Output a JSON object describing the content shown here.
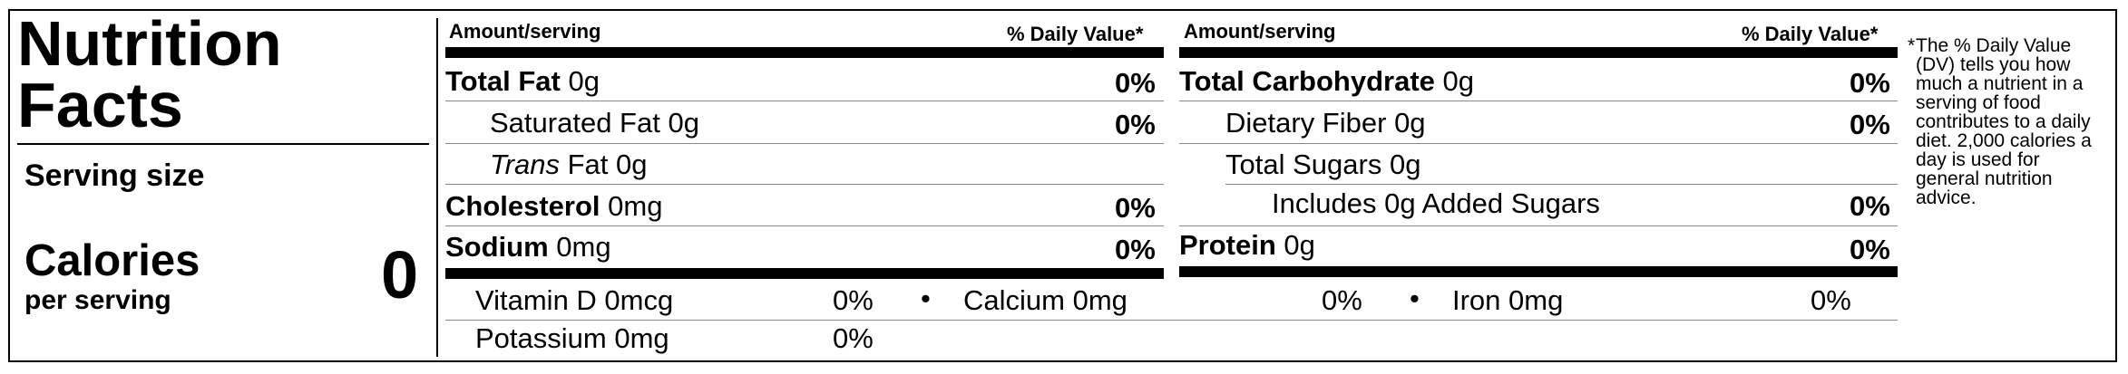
{
  "title": {
    "line1": "Nutrition",
    "line2": "Facts"
  },
  "serving_size_label": "Serving size",
  "calories": {
    "label": "Calories",
    "per": "per serving",
    "value": "0"
  },
  "headers": {
    "amount": "Amount/serving",
    "dv": "% Daily Value*"
  },
  "left_rows": {
    "total_fat": {
      "name": "Total Fat",
      "amount": "0g",
      "dv": "0%"
    },
    "sat_fat": {
      "name": "Saturated Fat",
      "amount": "0g",
      "dv": "0%"
    },
    "trans_fat": {
      "name_italic": "Trans",
      "name": "Fat",
      "amount": "0g"
    },
    "cholesterol": {
      "name": "Cholesterol",
      "amount": "0mg",
      "dv": "0%"
    },
    "sodium": {
      "name": "Sodium",
      "amount": "0mg",
      "dv": "0%"
    }
  },
  "right_rows": {
    "total_carb": {
      "name": "Total Carbohydrate",
      "amount": "0g",
      "dv": "0%"
    },
    "fiber": {
      "name": "Dietary Fiber",
      "amount": "0g",
      "dv": "0%"
    },
    "sugars": {
      "name": "Total Sugars",
      "amount": "0g"
    },
    "added_sugars": {
      "text": "Includes 0g Added Sugars",
      "dv": "0%"
    },
    "protein": {
      "name": "Protein",
      "amount": "0g",
      "dv": "0%"
    }
  },
  "vitamins": {
    "vit_d": {
      "label": "Vitamin D 0mcg",
      "dv": "0%"
    },
    "calcium": {
      "label": "Calcium 0mg",
      "dv": "0%"
    },
    "iron": {
      "label": "Iron 0mg",
      "dv": "0%"
    },
    "potassium": {
      "label": "Potassium 0mg",
      "dv": "0%"
    },
    "bullet": "•"
  },
  "footnote": {
    "star": "*",
    "text": "The % Daily Value (DV) tells you how much a nutrient in a serving of food contributes to a daily diet. 2,000 calories a day is used for general nutrition advice."
  }
}
